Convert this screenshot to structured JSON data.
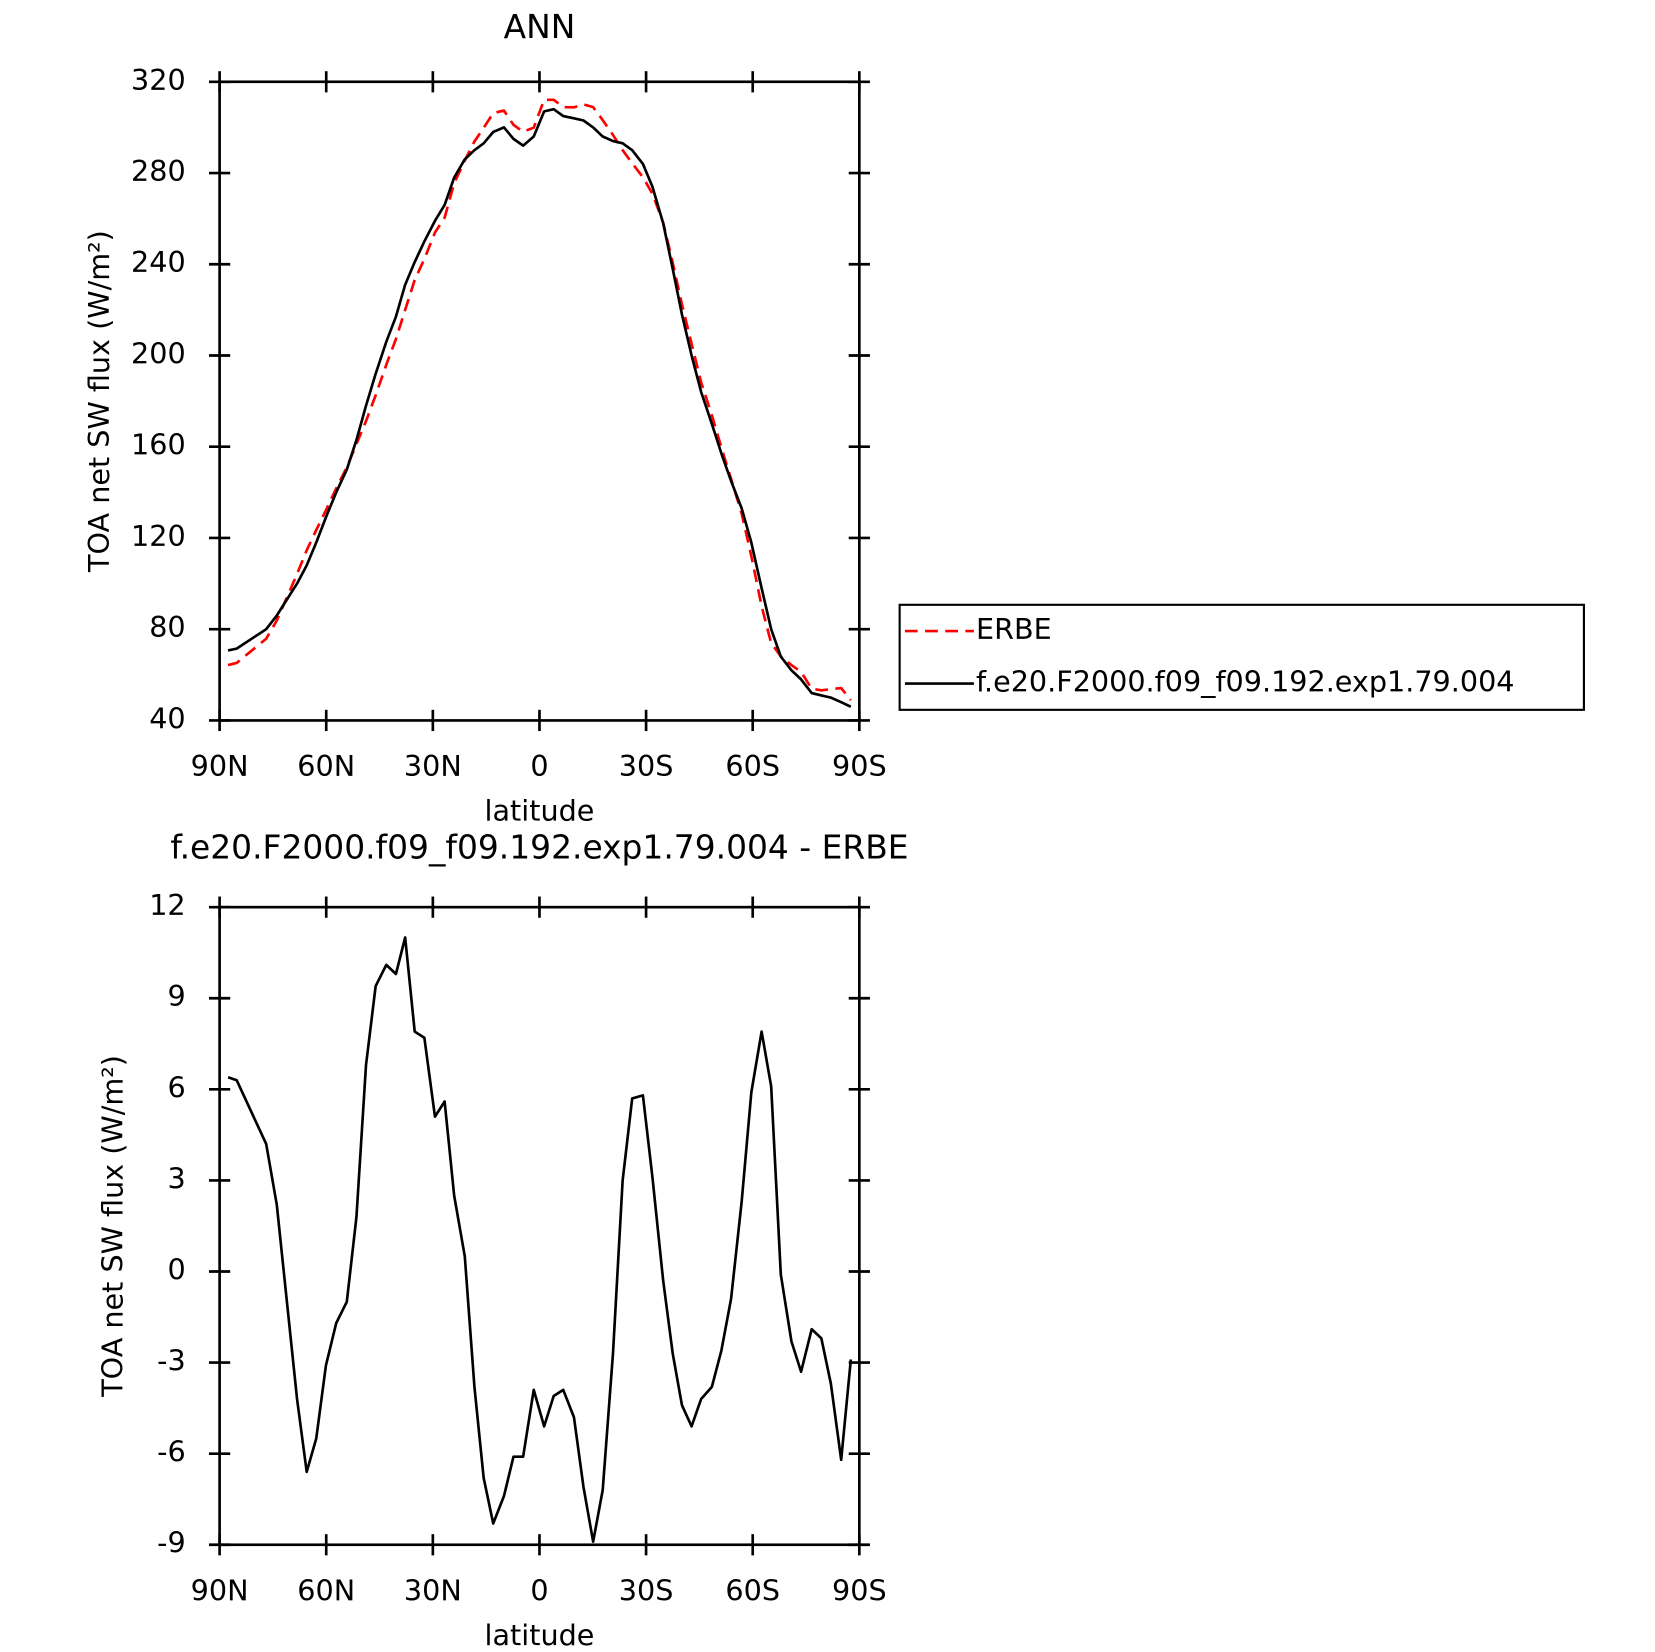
{
  "chart_data": [
    {
      "type": "line",
      "title": "ANN",
      "xlabel": "latitude",
      "ylabel": "TOA net SW flux (W/m²)",
      "xlim": [
        90,
        -90
      ],
      "xticks": [
        {
          "value": 90,
          "label": "90N"
        },
        {
          "value": 60,
          "label": "60N"
        },
        {
          "value": 30,
          "label": "30N"
        },
        0,
        {
          "value": -30,
          "label": "30S"
        },
        {
          "value": -60,
          "label": "60S"
        },
        {
          "value": -90,
          "label": "90S"
        }
      ],
      "ylim": [
        40,
        320
      ],
      "yticks": [
        40,
        80,
        120,
        160,
        200,
        240,
        280,
        320
      ],
      "legend": "right",
      "x": [
        87.6,
        85.2,
        76.9,
        73.9,
        68.2,
        65.5,
        62.8,
        60.1,
        57.2,
        54.2,
        51.5,
        48.8,
        46.1,
        43.1,
        40.4,
        37.8,
        35.1,
        32.4,
        29.4,
        26.7,
        24.0,
        21.0,
        18.3,
        15.7,
        13.0,
        10.0,
        7.3,
        4.6,
        1.6,
        -1.3,
        -4.0,
        -6.7,
        -9.7,
        -12.4,
        -15.1,
        -17.8,
        -20.7,
        -23.4,
        -26.1,
        -29.1,
        -31.8,
        -34.8,
        -37.5,
        -40.1,
        -42.8,
        -45.5,
        -48.5,
        -51.2,
        -53.9,
        -56.9,
        -59.6,
        -62.5,
        -65.2,
        -67.9,
        -70.9,
        -73.6,
        -76.6,
        -79.3,
        -82.0,
        -84.9,
        -87.6
      ],
      "series": [
        {
          "name": "ERBE",
          "color": "#ff0000",
          "line_style": "dashed",
          "values": [
            64.3,
            65.2,
            75.8,
            83.8,
            104.2,
            114.6,
            123.5,
            132.1,
            141.7,
            151,
            161.2,
            171.2,
            182.6,
            195.9,
            207.2,
            220,
            233.1,
            242.3,
            253.9,
            260.4,
            275.5,
            285.5,
            293.8,
            299.8,
            306.3,
            307.4,
            301.1,
            298.1,
            299.9,
            312.1,
            312.1,
            308.9,
            308.8,
            310.1,
            308.9,
            303.2,
            296.7,
            290,
            284.3,
            278.2,
            270.9,
            258.3,
            240.7,
            222.4,
            205.1,
            188.2,
            173.8,
            159.6,
            145.9,
            130.7,
            112.1,
            90.1,
            73.9,
            68.1,
            64.3,
            61.3,
            53.9,
            53.2,
            53.7,
            54.2,
            48.9
          ]
        },
        {
          "name": "f.e20.F2000.f09_f09.192.exp1.79.004",
          "color": "#000000",
          "line_style": "solid",
          "values": [
            70.7,
            71.5,
            80,
            86,
            100,
            108,
            118,
            129,
            140,
            150,
            163,
            178,
            192,
            206,
            217,
            231,
            241,
            250,
            259,
            266,
            278,
            286,
            290,
            293,
            298,
            300,
            295,
            292,
            296,
            307,
            308,
            305,
            304,
            303,
            300,
            296,
            294,
            293,
            290,
            284,
            274,
            258,
            238,
            218,
            200,
            184,
            170,
            157,
            145,
            133,
            118,
            98,
            80,
            68,
            62,
            58,
            52,
            51,
            50,
            48,
            46
          ]
        }
      ]
    },
    {
      "type": "line",
      "title": "f.e20.F2000.f09_f09.192.exp1.79.004 - ERBE",
      "xlabel": "latitude",
      "ylabel": "TOA net SW flux (W/m²)",
      "xlim": [
        90,
        -90
      ],
      "xticks": [
        {
          "value": 90,
          "label": "90N"
        },
        {
          "value": 60,
          "label": "60N"
        },
        {
          "value": 30,
          "label": "30N"
        },
        0,
        {
          "value": -30,
          "label": "30S"
        },
        {
          "value": -60,
          "label": "60S"
        },
        {
          "value": -90,
          "label": "90S"
        }
      ],
      "ylim": [
        -9,
        12
      ],
      "yticks": [
        -9,
        -6,
        -3,
        0,
        3,
        6,
        9,
        12
      ],
      "x": [
        87.6,
        85.2,
        76.9,
        73.9,
        68.2,
        65.5,
        62.8,
        60.1,
        57.2,
        54.2,
        51.5,
        48.8,
        46.1,
        43.1,
        40.4,
        37.8,
        35.1,
        32.4,
        29.4,
        26.7,
        24.0,
        21.0,
        18.3,
        15.7,
        13.0,
        10.0,
        7.3,
        4.6,
        1.6,
        -1.3,
        -4.0,
        -6.7,
        -9.7,
        -12.4,
        -15.1,
        -17.8,
        -20.7,
        -23.4,
        -26.1,
        -29.1,
        -31.8,
        -34.8,
        -37.5,
        -40.1,
        -42.8,
        -45.5,
        -48.5,
        -51.2,
        -53.9,
        -56.9,
        -59.6,
        -62.5,
        -65.2,
        -67.9,
        -70.9,
        -73.6,
        -76.6,
        -79.3,
        -82.0,
        -84.9,
        -87.6
      ],
      "series": [
        {
          "color": "#000000",
          "line_style": "solid",
          "values": [
            6.4,
            6.3,
            4.2,
            2.2,
            -4.2,
            -6.6,
            -5.5,
            -3.1,
            -1.7,
            -1.0,
            1.8,
            6.8,
            9.4,
            10.1,
            9.8,
            11.0,
            7.9,
            7.7,
            5.1,
            5.6,
            2.5,
            0.5,
            -3.8,
            -6.8,
            -8.3,
            -7.4,
            -6.1,
            -6.1,
            -3.9,
            -5.1,
            -4.1,
            -3.9,
            -4.8,
            -7.1,
            -8.9,
            -7.2,
            -2.7,
            3.0,
            5.7,
            5.8,
            3.1,
            -0.3,
            -2.7,
            -4.4,
            -5.1,
            -4.2,
            -3.8,
            -2.6,
            -0.9,
            2.3,
            5.9,
            7.9,
            6.1,
            -0.1,
            -2.3,
            -3.3,
            -1.9,
            -2.2,
            -3.7,
            -6.2,
            -2.9
          ]
        }
      ]
    }
  ]
}
